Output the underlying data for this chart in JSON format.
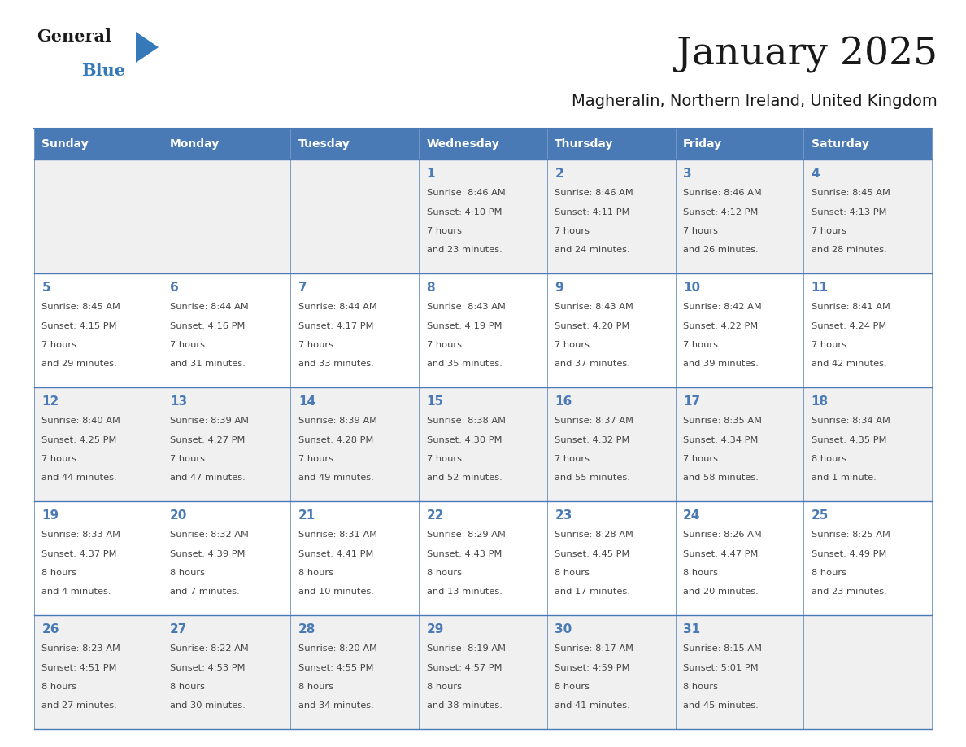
{
  "title": "January 2025",
  "subtitle": "Magheralin, Northern Ireland, United Kingdom",
  "days_of_week": [
    "Sunday",
    "Monday",
    "Tuesday",
    "Wednesday",
    "Thursday",
    "Friday",
    "Saturday"
  ],
  "header_bg": "#4a7ab5",
  "header_text": "#FFFFFF",
  "cell_bg_odd": "#f0f0f0",
  "cell_bg_even": "#FFFFFF",
  "cell_border": "#4a7ab5",
  "day_number_color": "#4a7ab5",
  "text_color": "#444444",
  "title_color": "#1a1a1a",
  "subtitle_color": "#1a1a1a",
  "blue_color": "#3579b8",
  "general_color": "#1a1a1a",
  "calendar_data": [
    [
      {
        "day": null,
        "sunrise": null,
        "sunset": null,
        "daylight": null
      },
      {
        "day": null,
        "sunrise": null,
        "sunset": null,
        "daylight": null
      },
      {
        "day": null,
        "sunrise": null,
        "sunset": null,
        "daylight": null
      },
      {
        "day": 1,
        "sunrise": "8:46 AM",
        "sunset": "4:10 PM",
        "daylight": "7 hours\nand 23 minutes."
      },
      {
        "day": 2,
        "sunrise": "8:46 AM",
        "sunset": "4:11 PM",
        "daylight": "7 hours\nand 24 minutes."
      },
      {
        "day": 3,
        "sunrise": "8:46 AM",
        "sunset": "4:12 PM",
        "daylight": "7 hours\nand 26 minutes."
      },
      {
        "day": 4,
        "sunrise": "8:45 AM",
        "sunset": "4:13 PM",
        "daylight": "7 hours\nand 28 minutes."
      }
    ],
    [
      {
        "day": 5,
        "sunrise": "8:45 AM",
        "sunset": "4:15 PM",
        "daylight": "7 hours\nand 29 minutes."
      },
      {
        "day": 6,
        "sunrise": "8:44 AM",
        "sunset": "4:16 PM",
        "daylight": "7 hours\nand 31 minutes."
      },
      {
        "day": 7,
        "sunrise": "8:44 AM",
        "sunset": "4:17 PM",
        "daylight": "7 hours\nand 33 minutes."
      },
      {
        "day": 8,
        "sunrise": "8:43 AM",
        "sunset": "4:19 PM",
        "daylight": "7 hours\nand 35 minutes."
      },
      {
        "day": 9,
        "sunrise": "8:43 AM",
        "sunset": "4:20 PM",
        "daylight": "7 hours\nand 37 minutes."
      },
      {
        "day": 10,
        "sunrise": "8:42 AM",
        "sunset": "4:22 PM",
        "daylight": "7 hours\nand 39 minutes."
      },
      {
        "day": 11,
        "sunrise": "8:41 AM",
        "sunset": "4:24 PM",
        "daylight": "7 hours\nand 42 minutes."
      }
    ],
    [
      {
        "day": 12,
        "sunrise": "8:40 AM",
        "sunset": "4:25 PM",
        "daylight": "7 hours\nand 44 minutes."
      },
      {
        "day": 13,
        "sunrise": "8:39 AM",
        "sunset": "4:27 PM",
        "daylight": "7 hours\nand 47 minutes."
      },
      {
        "day": 14,
        "sunrise": "8:39 AM",
        "sunset": "4:28 PM",
        "daylight": "7 hours\nand 49 minutes."
      },
      {
        "day": 15,
        "sunrise": "8:38 AM",
        "sunset": "4:30 PM",
        "daylight": "7 hours\nand 52 minutes."
      },
      {
        "day": 16,
        "sunrise": "8:37 AM",
        "sunset": "4:32 PM",
        "daylight": "7 hours\nand 55 minutes."
      },
      {
        "day": 17,
        "sunrise": "8:35 AM",
        "sunset": "4:34 PM",
        "daylight": "7 hours\nand 58 minutes."
      },
      {
        "day": 18,
        "sunrise": "8:34 AM",
        "sunset": "4:35 PM",
        "daylight": "8 hours\nand 1 minute."
      }
    ],
    [
      {
        "day": 19,
        "sunrise": "8:33 AM",
        "sunset": "4:37 PM",
        "daylight": "8 hours\nand 4 minutes."
      },
      {
        "day": 20,
        "sunrise": "8:32 AM",
        "sunset": "4:39 PM",
        "daylight": "8 hours\nand 7 minutes."
      },
      {
        "day": 21,
        "sunrise": "8:31 AM",
        "sunset": "4:41 PM",
        "daylight": "8 hours\nand 10 minutes."
      },
      {
        "day": 22,
        "sunrise": "8:29 AM",
        "sunset": "4:43 PM",
        "daylight": "8 hours\nand 13 minutes."
      },
      {
        "day": 23,
        "sunrise": "8:28 AM",
        "sunset": "4:45 PM",
        "daylight": "8 hours\nand 17 minutes."
      },
      {
        "day": 24,
        "sunrise": "8:26 AM",
        "sunset": "4:47 PM",
        "daylight": "8 hours\nand 20 minutes."
      },
      {
        "day": 25,
        "sunrise": "8:25 AM",
        "sunset": "4:49 PM",
        "daylight": "8 hours\nand 23 minutes."
      }
    ],
    [
      {
        "day": 26,
        "sunrise": "8:23 AM",
        "sunset": "4:51 PM",
        "daylight": "8 hours\nand 27 minutes."
      },
      {
        "day": 27,
        "sunrise": "8:22 AM",
        "sunset": "4:53 PM",
        "daylight": "8 hours\nand 30 minutes."
      },
      {
        "day": 28,
        "sunrise": "8:20 AM",
        "sunset": "4:55 PM",
        "daylight": "8 hours\nand 34 minutes."
      },
      {
        "day": 29,
        "sunrise": "8:19 AM",
        "sunset": "4:57 PM",
        "daylight": "8 hours\nand 38 minutes."
      },
      {
        "day": 30,
        "sunrise": "8:17 AM",
        "sunset": "4:59 PM",
        "daylight": "8 hours\nand 41 minutes."
      },
      {
        "day": 31,
        "sunrise": "8:15 AM",
        "sunset": "5:01 PM",
        "daylight": "8 hours\nand 45 minutes."
      },
      {
        "day": null,
        "sunrise": null,
        "sunset": null,
        "daylight": null
      }
    ]
  ]
}
